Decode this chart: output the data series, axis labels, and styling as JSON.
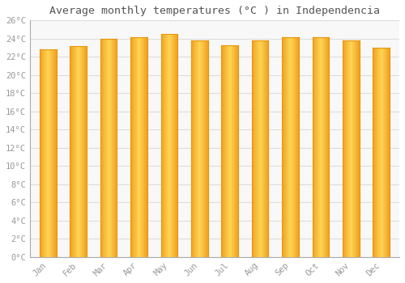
{
  "title": "Average monthly temperatures (°C ) in Independencia",
  "months": [
    "Jan",
    "Feb",
    "Mar",
    "Apr",
    "May",
    "Jun",
    "Jul",
    "Aug",
    "Sep",
    "Oct",
    "Nov",
    "Dec"
  ],
  "temperatures": [
    22.8,
    23.2,
    24.0,
    24.2,
    24.5,
    23.8,
    23.3,
    23.8,
    24.2,
    24.2,
    23.8,
    23.0
  ],
  "bar_color_left": "#F5A623",
  "bar_color_center": "#FFD04B",
  "bar_color_right": "#F5A623",
  "bar_edge_color": "#E8960A",
  "ylim": [
    0,
    26
  ],
  "ytick_step": 2,
  "background_color": "#FFFFFF",
  "plot_bg_color": "#F8F8F8",
  "grid_color": "#DDDDDD",
  "title_fontsize": 9.5,
  "tick_fontsize": 7.5,
  "tick_color": "#999999",
  "title_color": "#555555",
  "font_family": "monospace",
  "bar_width": 0.55
}
